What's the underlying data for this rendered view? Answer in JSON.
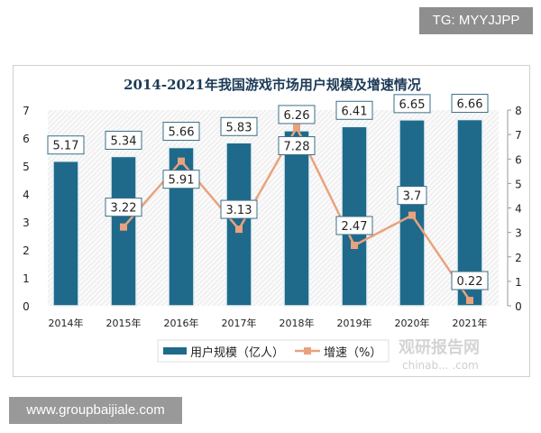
{
  "badges": {
    "tg": "TG: MYYJJPP",
    "site": "www.groupbaijiale.com"
  },
  "watermark": {
    "brand": "观研报告网",
    "url": "chinab... .com"
  },
  "colors": {
    "bar": "#1f6a8a",
    "line": "#e9a27e"
  },
  "chart_data": {
    "type": "bar+line",
    "title": "2014-2021年我国游戏市场用户规模及增速情况",
    "categories": [
      "2014年",
      "2015年",
      "2016年",
      "2017年",
      "2018年",
      "2019年",
      "2020年",
      "2021年"
    ],
    "series": [
      {
        "name": "用户规模（亿人）",
        "type": "bar",
        "axis": "left",
        "values": [
          5.17,
          5.34,
          5.66,
          5.83,
          6.26,
          6.41,
          6.65,
          6.66
        ]
      },
      {
        "name": "增速（%）",
        "type": "line",
        "axis": "right",
        "values": [
          null,
          3.22,
          5.91,
          3.13,
          7.28,
          2.47,
          3.7,
          0.22
        ]
      }
    ],
    "ylim_left": [
      0,
      7
    ],
    "yticks_left": [
      0,
      1,
      2,
      3,
      4,
      5,
      6,
      7
    ],
    "ylim_right": [
      0,
      8
    ],
    "yticks_right": [
      0,
      1,
      2,
      3,
      4,
      5,
      6,
      7,
      8
    ],
    "legend": "bottom",
    "grid": false
  }
}
